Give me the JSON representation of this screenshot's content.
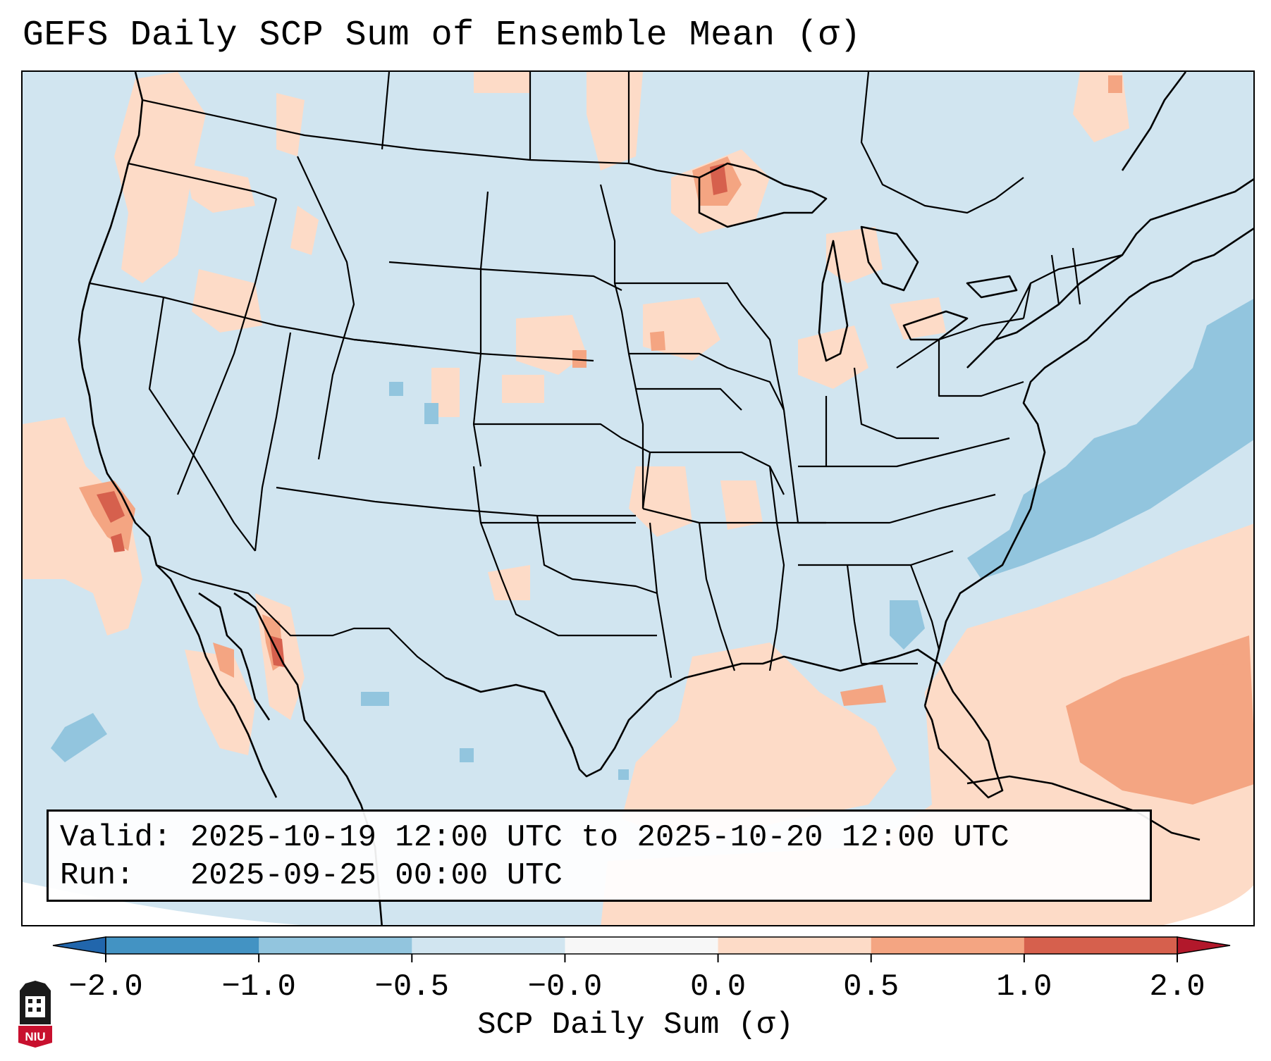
{
  "title": "GEFS Daily SCP Sum of Ensemble Mean (σ)",
  "info": {
    "valid_label": "Valid:",
    "valid_value": "2025-10-19 12:00 UTC to 2025-10-20 12:00 UTC",
    "run_label": "Run:",
    "run_value": "2025-09-25 00:00 UTC"
  },
  "colorbar": {
    "label": "SCP Daily Sum (σ)",
    "ticks": [
      "−2.0",
      "−1.0",
      "−0.5",
      "−0.0",
      "0.0",
      "0.5",
      "1.0",
      "2.0"
    ],
    "bins": [
      {
        "range": "-2.0 to -1.0",
        "color": "#4393c3"
      },
      {
        "range": "-1.0 to -0.5",
        "color": "#92c5de"
      },
      {
        "range": "-0.5 to -0.0",
        "color": "#d1e5f0"
      },
      {
        "range": "-0.0 to 0.0",
        "color": "#f7f7f7"
      },
      {
        "range": "0.0 to 0.5",
        "color": "#fddbc7"
      },
      {
        "range": "0.5 to 1.0",
        "color": "#f4a582"
      },
      {
        "range": "1.0 to 2.0",
        "color": "#d6604d"
      }
    ],
    "under_color": "#2166ac",
    "over_color": "#b2182b"
  },
  "map": {
    "projection": "Lambert Conformal Conic",
    "region": "CONUS",
    "background_color": "#d1e5f0",
    "outline_color": "#000000"
  },
  "logo": {
    "text": "NIU",
    "color": "#c8102e"
  }
}
